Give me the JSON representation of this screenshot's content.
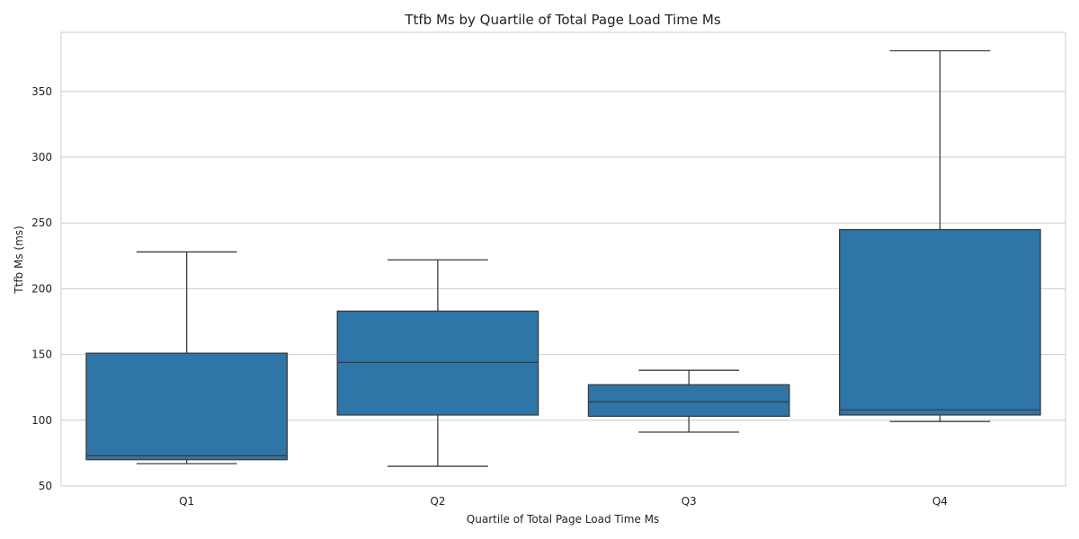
{
  "chart_data": {
    "type": "box",
    "title": "Ttfb Ms by Quartile of Total Page Load Time Ms",
    "xlabel": "Quartile of Total Page Load Time Ms",
    "ylabel": "Ttfb Ms (ms)",
    "ylim": [
      50,
      395
    ],
    "yticks": [
      50,
      100,
      150,
      200,
      250,
      300,
      350
    ],
    "grid": true,
    "color": "#2e75a8",
    "categories": [
      "Q1",
      "Q2",
      "Q3",
      "Q4"
    ],
    "boxes": [
      {
        "category": "Q1",
        "whisker_low": 67,
        "q1": 70,
        "median": 73,
        "q3": 151,
        "whisker_high": 228
      },
      {
        "category": "Q2",
        "whisker_low": 65,
        "q1": 104,
        "median": 144,
        "q3": 183,
        "whisker_high": 222
      },
      {
        "category": "Q3",
        "whisker_low": 91,
        "q1": 103,
        "median": 114,
        "q3": 127,
        "whisker_high": 138
      },
      {
        "category": "Q4",
        "whisker_low": 99,
        "q1": 104,
        "median": 108,
        "q3": 245,
        "whisker_high": 381
      }
    ]
  }
}
